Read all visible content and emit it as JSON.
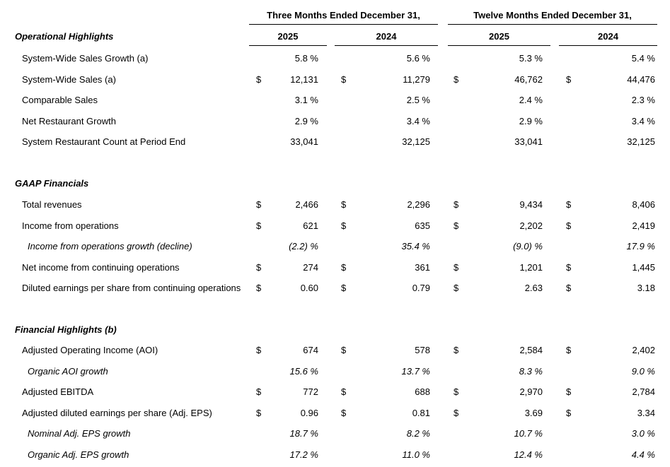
{
  "header": {
    "three_months": "Three Months Ended December 31,",
    "twelve_months": "Twelve Months Ended December 31,",
    "years": [
      "2025",
      "2024",
      "2025",
      "2024"
    ]
  },
  "sections": [
    {
      "title": "Operational Highlights",
      "rows": [
        {
          "label": "System-Wide Sales Growth (a)",
          "italic": false,
          "cur": [
            "",
            "",
            "",
            ""
          ],
          "vals": [
            "5.8 %",
            "5.6 %",
            "5.3 %",
            "5.4 %"
          ]
        },
        {
          "label": "System-Wide Sales (a)",
          "italic": false,
          "cur": [
            "$",
            "$",
            "$",
            "$"
          ],
          "vals": [
            "12,131",
            "11,279",
            "46,762",
            "44,476"
          ]
        },
        {
          "label": "Comparable Sales",
          "italic": false,
          "cur": [
            "",
            "",
            "",
            ""
          ],
          "vals": [
            "3.1 %",
            "2.5 %",
            "2.4 %",
            "2.3 %"
          ]
        },
        {
          "label": "Net Restaurant Growth",
          "italic": false,
          "cur": [
            "",
            "",
            "",
            ""
          ],
          "vals": [
            "2.9 %",
            "3.4 %",
            "2.9 %",
            "3.4 %"
          ]
        },
        {
          "label": "System Restaurant Count at Period End",
          "italic": false,
          "cur": [
            "",
            "",
            "",
            ""
          ],
          "vals": [
            "33,041",
            "32,125",
            "33,041",
            "32,125"
          ]
        }
      ]
    },
    {
      "title": "GAAP Financials",
      "rows": [
        {
          "label": "Total revenues",
          "italic": false,
          "cur": [
            "$",
            "$",
            "$",
            "$"
          ],
          "vals": [
            "2,466",
            "2,296",
            "9,434",
            "8,406"
          ]
        },
        {
          "label": "Income from operations",
          "italic": false,
          "cur": [
            "$",
            "$",
            "$",
            "$"
          ],
          "vals": [
            "621",
            "635",
            "2,202",
            "2,419"
          ]
        },
        {
          "label": "Income from operations growth (decline)",
          "italic": true,
          "cur": [
            "",
            "",
            "",
            ""
          ],
          "vals": [
            "(2.2) %",
            "35.4 %",
            "(9.0) %",
            "17.9 %"
          ]
        },
        {
          "label": "Net income from continuing operations",
          "italic": false,
          "cur": [
            "$",
            "$",
            "$",
            "$"
          ],
          "vals": [
            "274",
            "361",
            "1,201",
            "1,445"
          ]
        },
        {
          "label": "Diluted earnings per share from continuing operations",
          "italic": false,
          "cur": [
            "$",
            "$",
            "$",
            "$"
          ],
          "vals": [
            "0.60",
            "0.79",
            "2.63",
            "3.18"
          ]
        }
      ]
    },
    {
      "title": "Financial Highlights (b)",
      "rows": [
        {
          "label": "Adjusted Operating Income (AOI)",
          "italic": false,
          "cur": [
            "$",
            "$",
            "$",
            "$"
          ],
          "vals": [
            "674",
            "578",
            "2,584",
            "2,402"
          ]
        },
        {
          "label": "Organic AOI growth",
          "italic": true,
          "cur": [
            "",
            "",
            "",
            ""
          ],
          "vals": [
            "15.6 %",
            "13.7 %",
            "8.3 %",
            "9.0 %"
          ]
        },
        {
          "label": "Adjusted EBITDA",
          "italic": false,
          "cur": [
            "$",
            "$",
            "$",
            "$"
          ],
          "vals": [
            "772",
            "688",
            "2,970",
            "2,784"
          ]
        },
        {
          "label": "Adjusted diluted earnings per share  (Adj. EPS)",
          "italic": false,
          "cur": [
            "$",
            "$",
            "$",
            "$"
          ],
          "vals": [
            "0.96",
            "0.81",
            "3.69",
            "3.34"
          ]
        },
        {
          "label": "Nominal Adj. EPS growth",
          "italic": true,
          "cur": [
            "",
            "",
            "",
            ""
          ],
          "vals": [
            "18.7 %",
            "8.2 %",
            "10.7 %",
            "3.0 %"
          ]
        },
        {
          "label": "Organic Adj. EPS growth",
          "italic": true,
          "cur": [
            "",
            "",
            "",
            ""
          ],
          "vals": [
            "17.2 %",
            "11.0 %",
            "12.4 %",
            "4.4 %"
          ]
        }
      ]
    }
  ]
}
